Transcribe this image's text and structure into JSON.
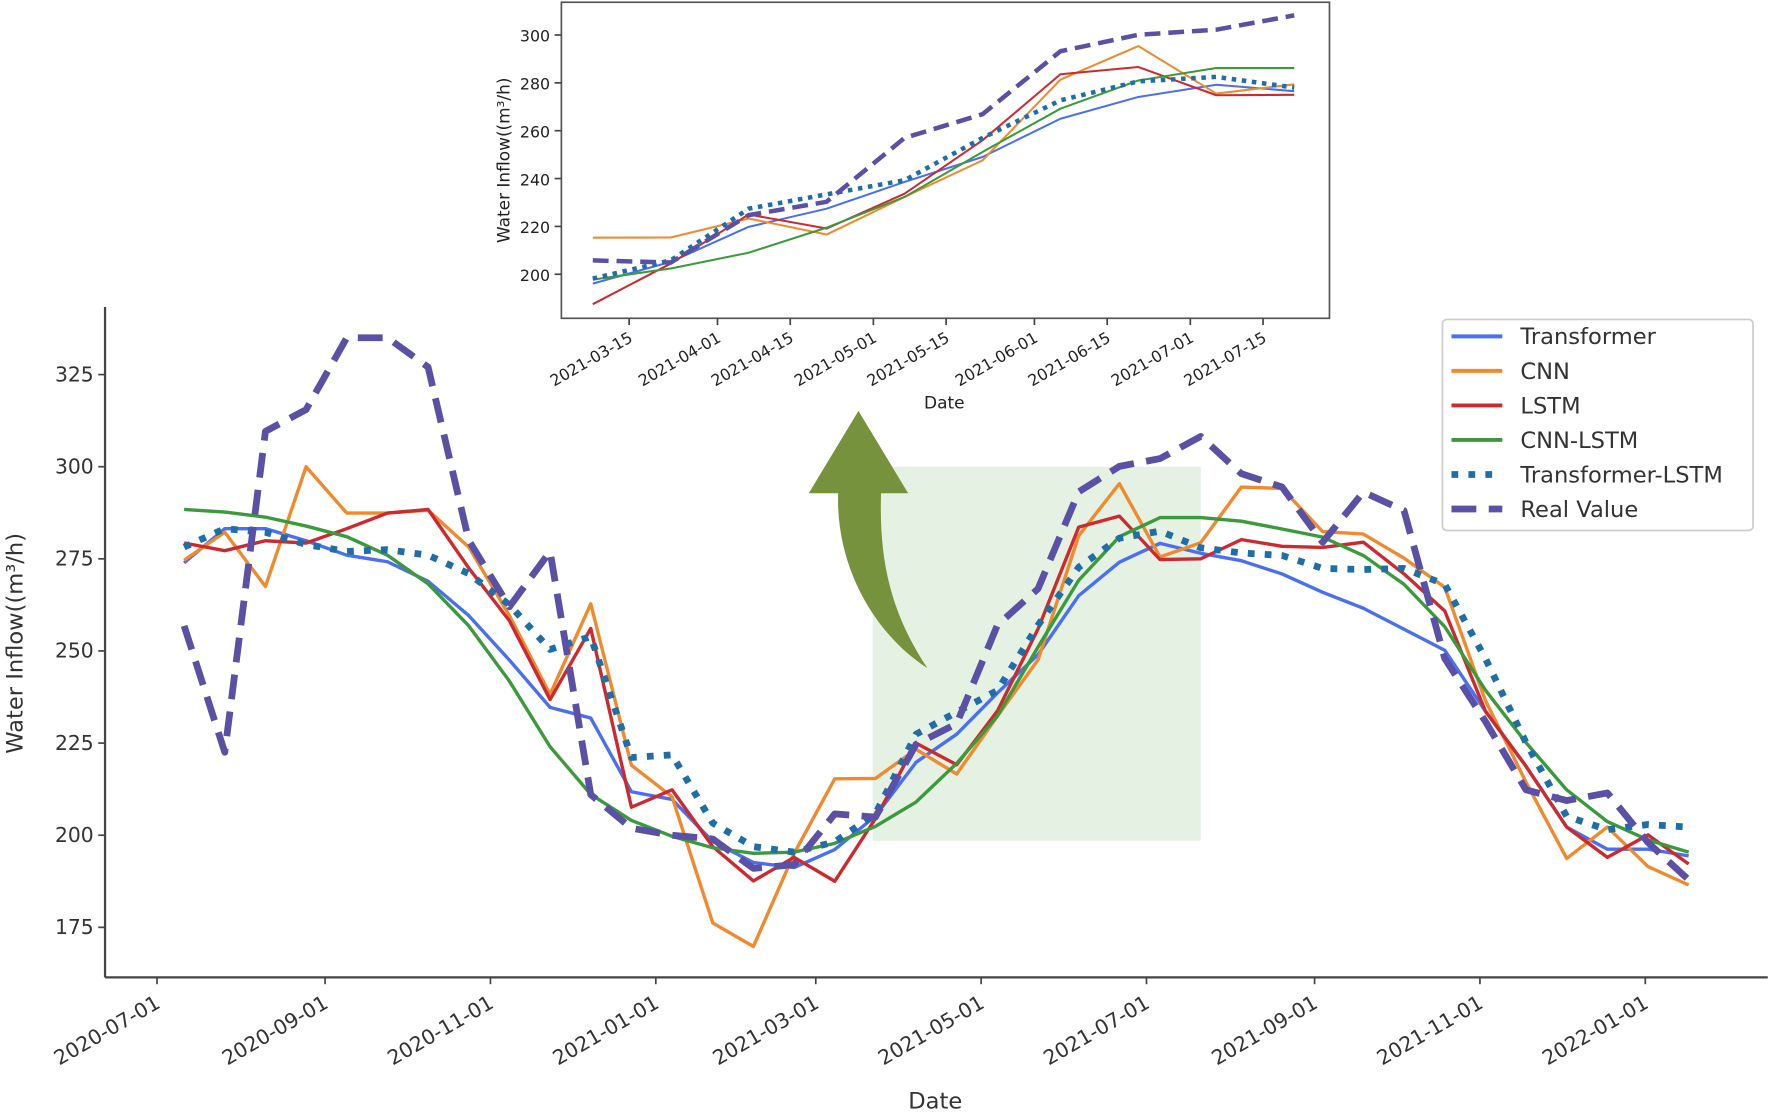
{
  "chart_data": [
    {
      "type": "line",
      "title": "",
      "xlabel": "Date",
      "ylabel": "Water Inflow((m³/h)",
      "ylim": [
        161.5,
        343
      ],
      "yticks": [
        175,
        200,
        225,
        250,
        275,
        300,
        325
      ],
      "xticks": [
        "2020-07-01",
        "2020-09-01",
        "2020-11-01",
        "2021-01-01",
        "2021-03-01",
        "2021-05-01",
        "2021-07-01",
        "2021-09-01",
        "2021-11-01",
        "2022-01-01"
      ],
      "legend_position": "top-right",
      "highlight_region": {
        "x": [
          "2021-03-22",
          "2021-07-21"
        ],
        "y": [
          198.5,
          300
        ],
        "color": "#dcecd9"
      },
      "x": [
        "2020-07-11",
        "2020-07-26",
        "2020-08-10",
        "2020-08-25",
        "2020-09-09",
        "2020-09-24",
        "2020-10-09",
        "2020-10-24",
        "2020-11-08",
        "2020-11-23",
        "2020-12-08",
        "2020-12-23",
        "2021-01-07",
        "2021-01-22",
        "2021-02-06",
        "2021-02-21",
        "2021-03-08",
        "2021-03-23",
        "2021-04-07",
        "2021-04-22",
        "2021-05-07",
        "2021-05-22",
        "2021-06-06",
        "2021-06-21",
        "2021-07-06",
        "2021-07-21",
        "2021-08-05",
        "2021-08-20",
        "2021-09-04",
        "2021-09-19",
        "2021-10-04",
        "2021-10-19",
        "2021-11-03",
        "2021-11-18",
        "2021-12-03",
        "2021-12-18",
        "2022-01-02",
        "2022-01-17"
      ],
      "series": [
        {
          "name": "Transformer",
          "color": "#4a6ff0",
          "style": "solid",
          "values": [
            273.9,
            283.2,
            283.2,
            279.9,
            276,
            274.2,
            268.9,
            259.6,
            247.5,
            234.7,
            231.8,
            211.8,
            209.7,
            198.3,
            192.6,
            191.2,
            196.1,
            205.2,
            219.8,
            227.4,
            238.6,
            249,
            265,
            274.1,
            279.2,
            276.5,
            274.5,
            270.9,
            265.9,
            261.6,
            255.9,
            250.2,
            233.7,
            218.7,
            202.2,
            196.2,
            196.2,
            194.4
          ]
        },
        {
          "name": "CNN",
          "color": "#f08a2c",
          "style": "solid",
          "values": [
            274.6,
            282.2,
            267.5,
            300,
            287.4,
            287.4,
            288.2,
            278.2,
            259.6,
            238.2,
            262.8,
            219,
            210.4,
            176.2,
            169.8,
            195,
            215.3,
            215.4,
            223.3,
            216.6,
            232.3,
            247.6,
            281.3,
            295.4,
            275.5,
            279.4,
            294.5,
            294.1,
            282.4,
            281.7,
            275.2,
            267.3,
            236.6,
            214.4,
            193.7,
            202.2,
            191.5,
            186.5
          ]
        },
        {
          "name": "LSTM",
          "color": "#cc2a2f",
          "style": "solid",
          "values": [
            279.3,
            277.2,
            279.9,
            279.3,
            283.2,
            287.4,
            288.4,
            272.5,
            258.2,
            236.8,
            256.1,
            207.6,
            212.3,
            196.9,
            187.6,
            194,
            187.5,
            204.5,
            225,
            219.1,
            233.7,
            256,
            283.6,
            286.6,
            274.8,
            275,
            280.2,
            278.4,
            278.1,
            279.5,
            270.9,
            260.9,
            233.7,
            218.7,
            202.2,
            194,
            200.1,
            192.2
          ]
        },
        {
          "name": "CNN-LSTM",
          "color": "#3a9a3c",
          "style": "solid",
          "values": [
            288.4,
            287.7,
            286.3,
            283.9,
            281,
            276,
            268.2,
            256.8,
            241.8,
            224,
            211.1,
            204,
            199.7,
            196.6,
            195.1,
            195.4,
            197.8,
            202.4,
            209,
            219.5,
            232.3,
            251.1,
            269.2,
            281,
            286.2,
            286.2,
            285.2,
            283.1,
            280.9,
            275.9,
            268.1,
            256.6,
            239.4,
            225.1,
            212.3,
            203.7,
            198.7,
            195.4
          ]
        },
        {
          "name": "Transformer-LSTM",
          "color": "#1f6ea8",
          "style": "dotted",
          "values": [
            278.2,
            283.2,
            282.2,
            278.9,
            277,
            277.5,
            276,
            271,
            262.5,
            250.4,
            253.9,
            221.1,
            221.8,
            203.3,
            196.9,
            195.4,
            198.2,
            205.8,
            227.4,
            233.4,
            239.3,
            257,
            272.7,
            280.6,
            282.5,
            278,
            276.6,
            275.9,
            272.4,
            272.1,
            272.4,
            268.1,
            248,
            225.1,
            205.1,
            201.5,
            202.9,
            202.2
          ]
        },
        {
          "name": "Real Value",
          "color": "#5a50a5",
          "style": "dashed",
          "values": [
            256.8,
            222.5,
            309.6,
            315.5,
            335,
            335,
            327,
            280,
            262,
            277,
            211,
            201.9,
            200,
            199,
            191,
            192,
            205.8,
            204.9,
            224.7,
            230.3,
            257,
            266.9,
            293.2,
            300.1,
            302.2,
            308.2,
            298.1,
            294.5,
            279.5,
            293.1,
            288.1,
            248,
            230.9,
            212.3,
            209.4,
            211.5,
            198,
            187.9
          ]
        }
      ]
    },
    {
      "type": "line",
      "title": "",
      "xlabel": "Date",
      "ylabel": "Water Inflow((m³/h)",
      "ylim": [
        182.5,
        314
      ],
      "yticks": [
        200,
        220,
        240,
        260,
        280,
        300
      ],
      "xticks": [
        "2021-03-15",
        "2021-04-01",
        "2021-04-15",
        "2021-05-01",
        "2021-05-15",
        "2021-06-01",
        "2021-06-15",
        "2021-07-01",
        "2021-07-15"
      ],
      "x": [
        "2021-03-08",
        "2021-03-23",
        "2021-04-07",
        "2021-04-22",
        "2021-05-07",
        "2021-05-22",
        "2021-06-06",
        "2021-06-21",
        "2021-07-06",
        "2021-07-21"
      ],
      "series": [
        {
          "name": "Transformer",
          "color": "#4a6ff0",
          "style": "solid",
          "values": [
            196.1,
            205.2,
            219.8,
            227.4,
            238.6,
            249,
            265,
            274.1,
            279.2,
            276.5
          ]
        },
        {
          "name": "CNN",
          "color": "#f08a2c",
          "style": "solid",
          "values": [
            215.3,
            215.4,
            223.3,
            216.6,
            232.3,
            247.6,
            281.3,
            295.4,
            275.5,
            279.4
          ]
        },
        {
          "name": "LSTM",
          "color": "#cc2a2f",
          "style": "solid",
          "values": [
            187.5,
            204.5,
            225,
            219.1,
            233.7,
            256,
            283.6,
            286.6,
            274.8,
            275
          ]
        },
        {
          "name": "CNN-LSTM",
          "color": "#3a9a3c",
          "style": "solid",
          "values": [
            197.8,
            202.4,
            209,
            219.5,
            232.3,
            251.1,
            269.2,
            281,
            286.2,
            286.2
          ]
        },
        {
          "name": "Transformer-LSTM",
          "color": "#1f6ea8",
          "style": "dotted",
          "values": [
            198.2,
            205.8,
            227.4,
            233.4,
            239.3,
            257,
            272.7,
            280.6,
            282.5,
            278
          ]
        },
        {
          "name": "Real Value",
          "color": "#5a50a5",
          "style": "dashed",
          "values": [
            205.8,
            204.9,
            224.7,
            230.3,
            257,
            266.9,
            293.2,
            300.1,
            302.2,
            308.2
          ]
        }
      ]
    }
  ],
  "arrow": {
    "color": "#76923c",
    "meaning": "zoom-in"
  }
}
